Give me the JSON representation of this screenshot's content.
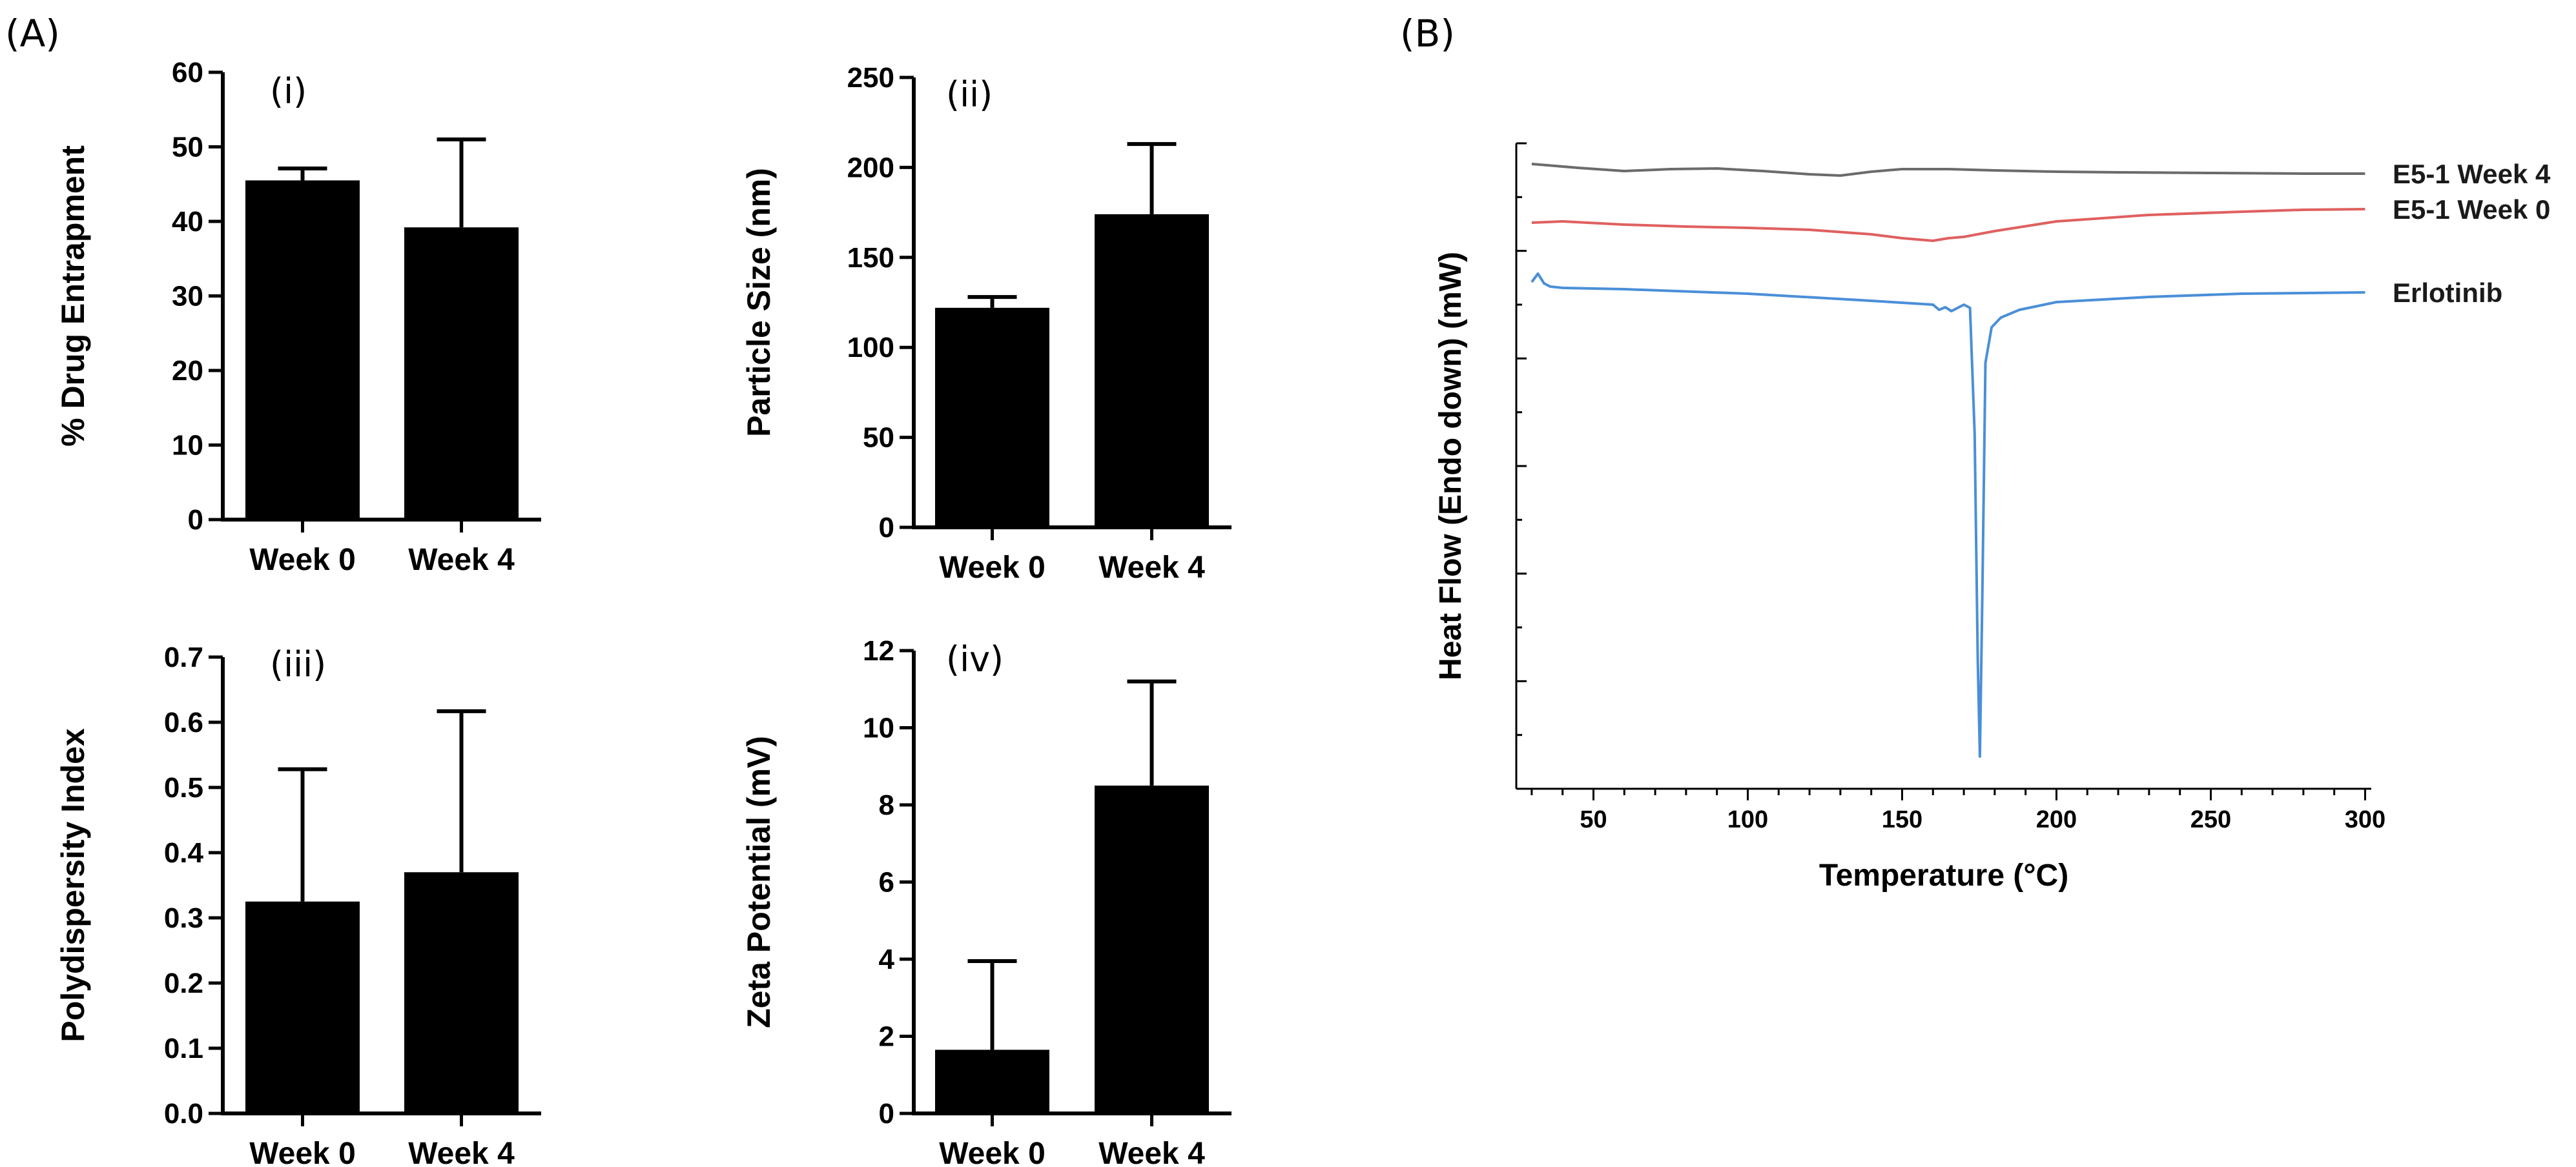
{
  "panel_labels": {
    "a": "(A)",
    "b": "(B)"
  },
  "chart_data": [
    {
      "id": "i",
      "type": "bar",
      "sublabel": "(i)",
      "categories": [
        "Week 0",
        "Week 4"
      ],
      "values": [
        45.5,
        39.2
      ],
      "errors": [
        1.6,
        11.8
      ],
      "ylabel": "% Drug Entrapment",
      "ylim": [
        0,
        60
      ],
      "yticks": [
        "0",
        "10",
        "20",
        "30",
        "40",
        "50",
        "60"
      ]
    },
    {
      "id": "ii",
      "type": "bar",
      "sublabel": "(ii)",
      "categories": [
        "Week 0",
        "Week 4"
      ],
      "values": [
        122,
        174
      ],
      "errors": [
        6,
        39
      ],
      "ylabel": "Particle Size (nm)",
      "ylim": [
        0,
        250
      ],
      "yticks": [
        "0",
        "50",
        "100",
        "150",
        "200",
        "250"
      ]
    },
    {
      "id": "iii",
      "type": "bar",
      "sublabel": "(iii)",
      "categories": [
        "Week 0",
        "Week 4"
      ],
      "values": [
        0.325,
        0.37
      ],
      "errors": [
        0.203,
        0.247
      ],
      "ylabel": "Polydispersity Index",
      "ylim": [
        0,
        0.7
      ],
      "yticks": [
        "0.0",
        "0.1",
        "0.2",
        "0.3",
        "0.4",
        "0.5",
        "0.6",
        "0.7"
      ]
    },
    {
      "id": "iv",
      "type": "bar",
      "sublabel": "(iv)",
      "categories": [
        "Week 0",
        "Week 4"
      ],
      "values": [
        1.65,
        8.5
      ],
      "errors": [
        2.3,
        2.7
      ],
      "ylabel": "Zeta Potential (mV)",
      "ylim": [
        0,
        12
      ],
      "yticks": [
        "0",
        "2",
        "4",
        "6",
        "8",
        "10",
        "12"
      ]
    },
    {
      "id": "dsc",
      "type": "line",
      "xlabel": "Temperature (°C)",
      "ylabel": "Heat Flow (Endo down) (mW)",
      "xlim": [
        25,
        302
      ],
      "ylim": [
        0,
        100
      ],
      "xticks": [
        50,
        100,
        150,
        200,
        250,
        300
      ],
      "series": [
        {
          "name": "E5-1 Week 4",
          "color": "#6b6b6b",
          "x": [
            30,
            45,
            60,
            75,
            90,
            105,
            120,
            130,
            140,
            150,
            165,
            180,
            200,
            220,
            250,
            280,
            300
          ],
          "y": [
            96.8,
            96.2,
            95.7,
            96.0,
            96.1,
            95.7,
            95.2,
            95.0,
            95.6,
            96.0,
            96.0,
            95.8,
            95.6,
            95.5,
            95.4,
            95.3,
            95.3
          ]
        },
        {
          "name": "E5-1 Week 0",
          "color": "#e06060",
          "x": [
            30,
            40,
            60,
            80,
            100,
            120,
            140,
            150,
            155,
            160,
            165,
            170,
            180,
            200,
            230,
            260,
            280,
            300
          ],
          "y": [
            87.7,
            87.9,
            87.4,
            87.1,
            86.9,
            86.6,
            85.9,
            85.3,
            85.1,
            84.9,
            85.3,
            85.5,
            86.4,
            87.9,
            88.9,
            89.4,
            89.7,
            89.8
          ]
        },
        {
          "name": "Erlotinib",
          "color": "#4a8fd8",
          "x": [
            30,
            32,
            34,
            36,
            40,
            60,
            100,
            140,
            160,
            162,
            164,
            166,
            170,
            172,
            173.5,
            174.5,
            175.2,
            176,
            177,
            179,
            182,
            188,
            200,
            230,
            260,
            300
          ],
          "y": [
            78.5,
            79.8,
            78.3,
            77.8,
            77.6,
            77.4,
            76.7,
            75.6,
            75.0,
            74.2,
            74.6,
            74.0,
            75.0,
            74.5,
            55.0,
            20.0,
            5.0,
            30.0,
            66.0,
            71.5,
            73.0,
            74.2,
            75.4,
            76.2,
            76.7,
            76.9
          ]
        }
      ]
    }
  ]
}
